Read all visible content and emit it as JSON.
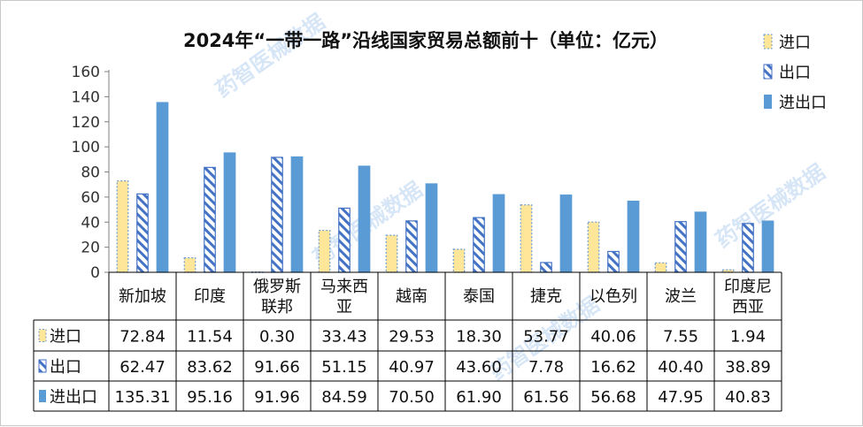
{
  "chart_data": {
    "type": "bar",
    "title": "2024年“一带一路”沿线国家贸易总额前十（单位：亿元）",
    "categories": [
      "新加坡",
      "印度",
      "俄罗斯\n联邦",
      "马来西\n亚",
      "越南",
      "泰国",
      "捷克",
      "以色列",
      "波兰",
      "印度尼\n西亚"
    ],
    "series": [
      {
        "name": "进口",
        "values": [
          72.84,
          11.54,
          0.3,
          33.43,
          29.53,
          18.3,
          53.77,
          40.06,
          7.55,
          1.94
        ],
        "display": [
          "72.84",
          "11.54",
          "0.30",
          "33.43",
          "29.53",
          "18.30",
          "53.77",
          "40.06",
          "7.55",
          "1.94"
        ]
      },
      {
        "name": "出口",
        "values": [
          62.47,
          83.62,
          91.66,
          51.15,
          40.97,
          43.6,
          7.78,
          16.62,
          40.4,
          38.89
        ],
        "display": [
          "62.47",
          "83.62",
          "91.66",
          "51.15",
          "40.97",
          "43.60",
          "7.78",
          "16.62",
          "40.40",
          "38.89"
        ]
      },
      {
        "name": "进出口",
        "values": [
          135.31,
          95.16,
          91.96,
          84.59,
          70.5,
          61.9,
          61.56,
          56.68,
          47.95,
          40.83
        ],
        "display": [
          "135.31",
          "95.16",
          "91.96",
          "84.59",
          "70.50",
          "61.90",
          "61.56",
          "56.68",
          "47.95",
          "40.83"
        ]
      }
    ],
    "ylim": [
      0,
      160
    ],
    "yticks": [
      0,
      20,
      40,
      60,
      80,
      100,
      120,
      140,
      160
    ],
    "grid": false,
    "legend": "top-right",
    "data_table": true
  },
  "colors": {
    "import_fill": "#ffe699",
    "import_border": "#6b9bd1",
    "export_stripe": "#4472c4",
    "total_fill": "#5b9bd5",
    "axis": "#7f7f7f"
  },
  "watermark": [
    "药智医械数据",
    "药智医械数据",
    "药智医械数据",
    "药智医械数据"
  ]
}
